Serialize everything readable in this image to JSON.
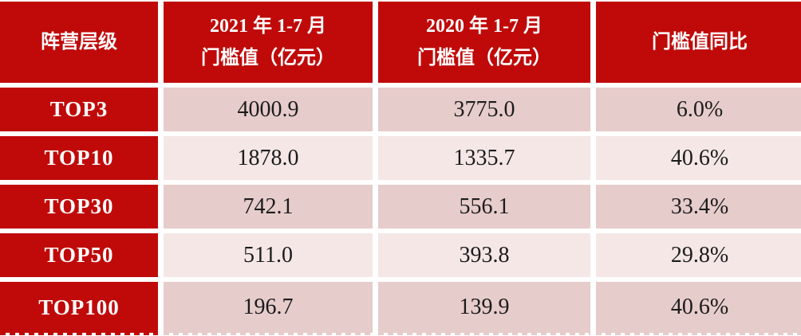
{
  "colors": {
    "header_red": "#c00a0a",
    "band_dark_pink": "#e6cccb",
    "band_light_pink": "#f4e7e6",
    "grid_line_white": "#ffffff",
    "header_text": "#ffffff",
    "data_text": "#1c1c1c"
  },
  "chart_data": {
    "type": "table",
    "title": "",
    "header": {
      "col1": "阵营层级",
      "col2_line1": "2021 年 1-7 月",
      "col2_line2": "门槛值（亿元）",
      "col3_line1": "2020 年 1-7 月",
      "col3_line2": "门槛值（亿元）",
      "col4": "门槛值同比"
    },
    "columns": [
      "阵营层级",
      "2021 年 1-7 月 门槛值（亿元）",
      "2020 年 1-7 月 门槛值（亿元）",
      "门槛值同比"
    ],
    "rows": [
      {
        "tier": "TOP3",
        "v2021": "4000.9",
        "v2020": "3775.0",
        "yoy": "6.0%"
      },
      {
        "tier": "TOP10",
        "v2021": "1878.0",
        "v2020": "1335.7",
        "yoy": "40.6%"
      },
      {
        "tier": "TOP30",
        "v2021": "742.1",
        "v2020": "556.1",
        "yoy": "33.4%"
      },
      {
        "tier": "TOP50",
        "v2021": "511.0",
        "v2020": "393.8",
        "yoy": "29.8%"
      },
      {
        "tier": "TOP100",
        "v2021": "196.7",
        "v2020": "139.9",
        "yoy": "40.6%"
      }
    ],
    "layout": {
      "banding": "alternating dark/light pink rows",
      "first_column_style": "red header-style column",
      "bottom_edge": "dashed"
    }
  }
}
